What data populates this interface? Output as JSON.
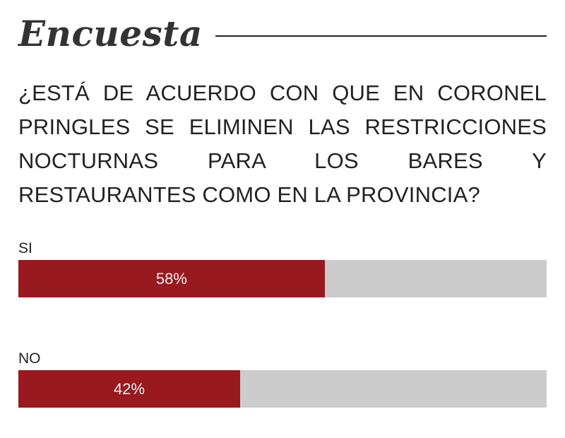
{
  "widget": {
    "title": "Encuesta",
    "question": "¿ESTÁ DE ACUERDO CON QUE EN CORONEL PRINGLES SE ELIMINEN LAS RESTRICCIONES NOCTURNAS PARA LOS BARES Y RESTAURANTES COMO EN LA PROVINCIA?"
  },
  "options": [
    {
      "label": "SI",
      "percent_label": "58%",
      "percent": 58
    },
    {
      "label": "NO",
      "percent_label": "42%",
      "percent": 42
    }
  ],
  "colors": {
    "fill": "#98191e",
    "track": "#cccccc",
    "title": "#333333",
    "text": "#222222"
  }
}
